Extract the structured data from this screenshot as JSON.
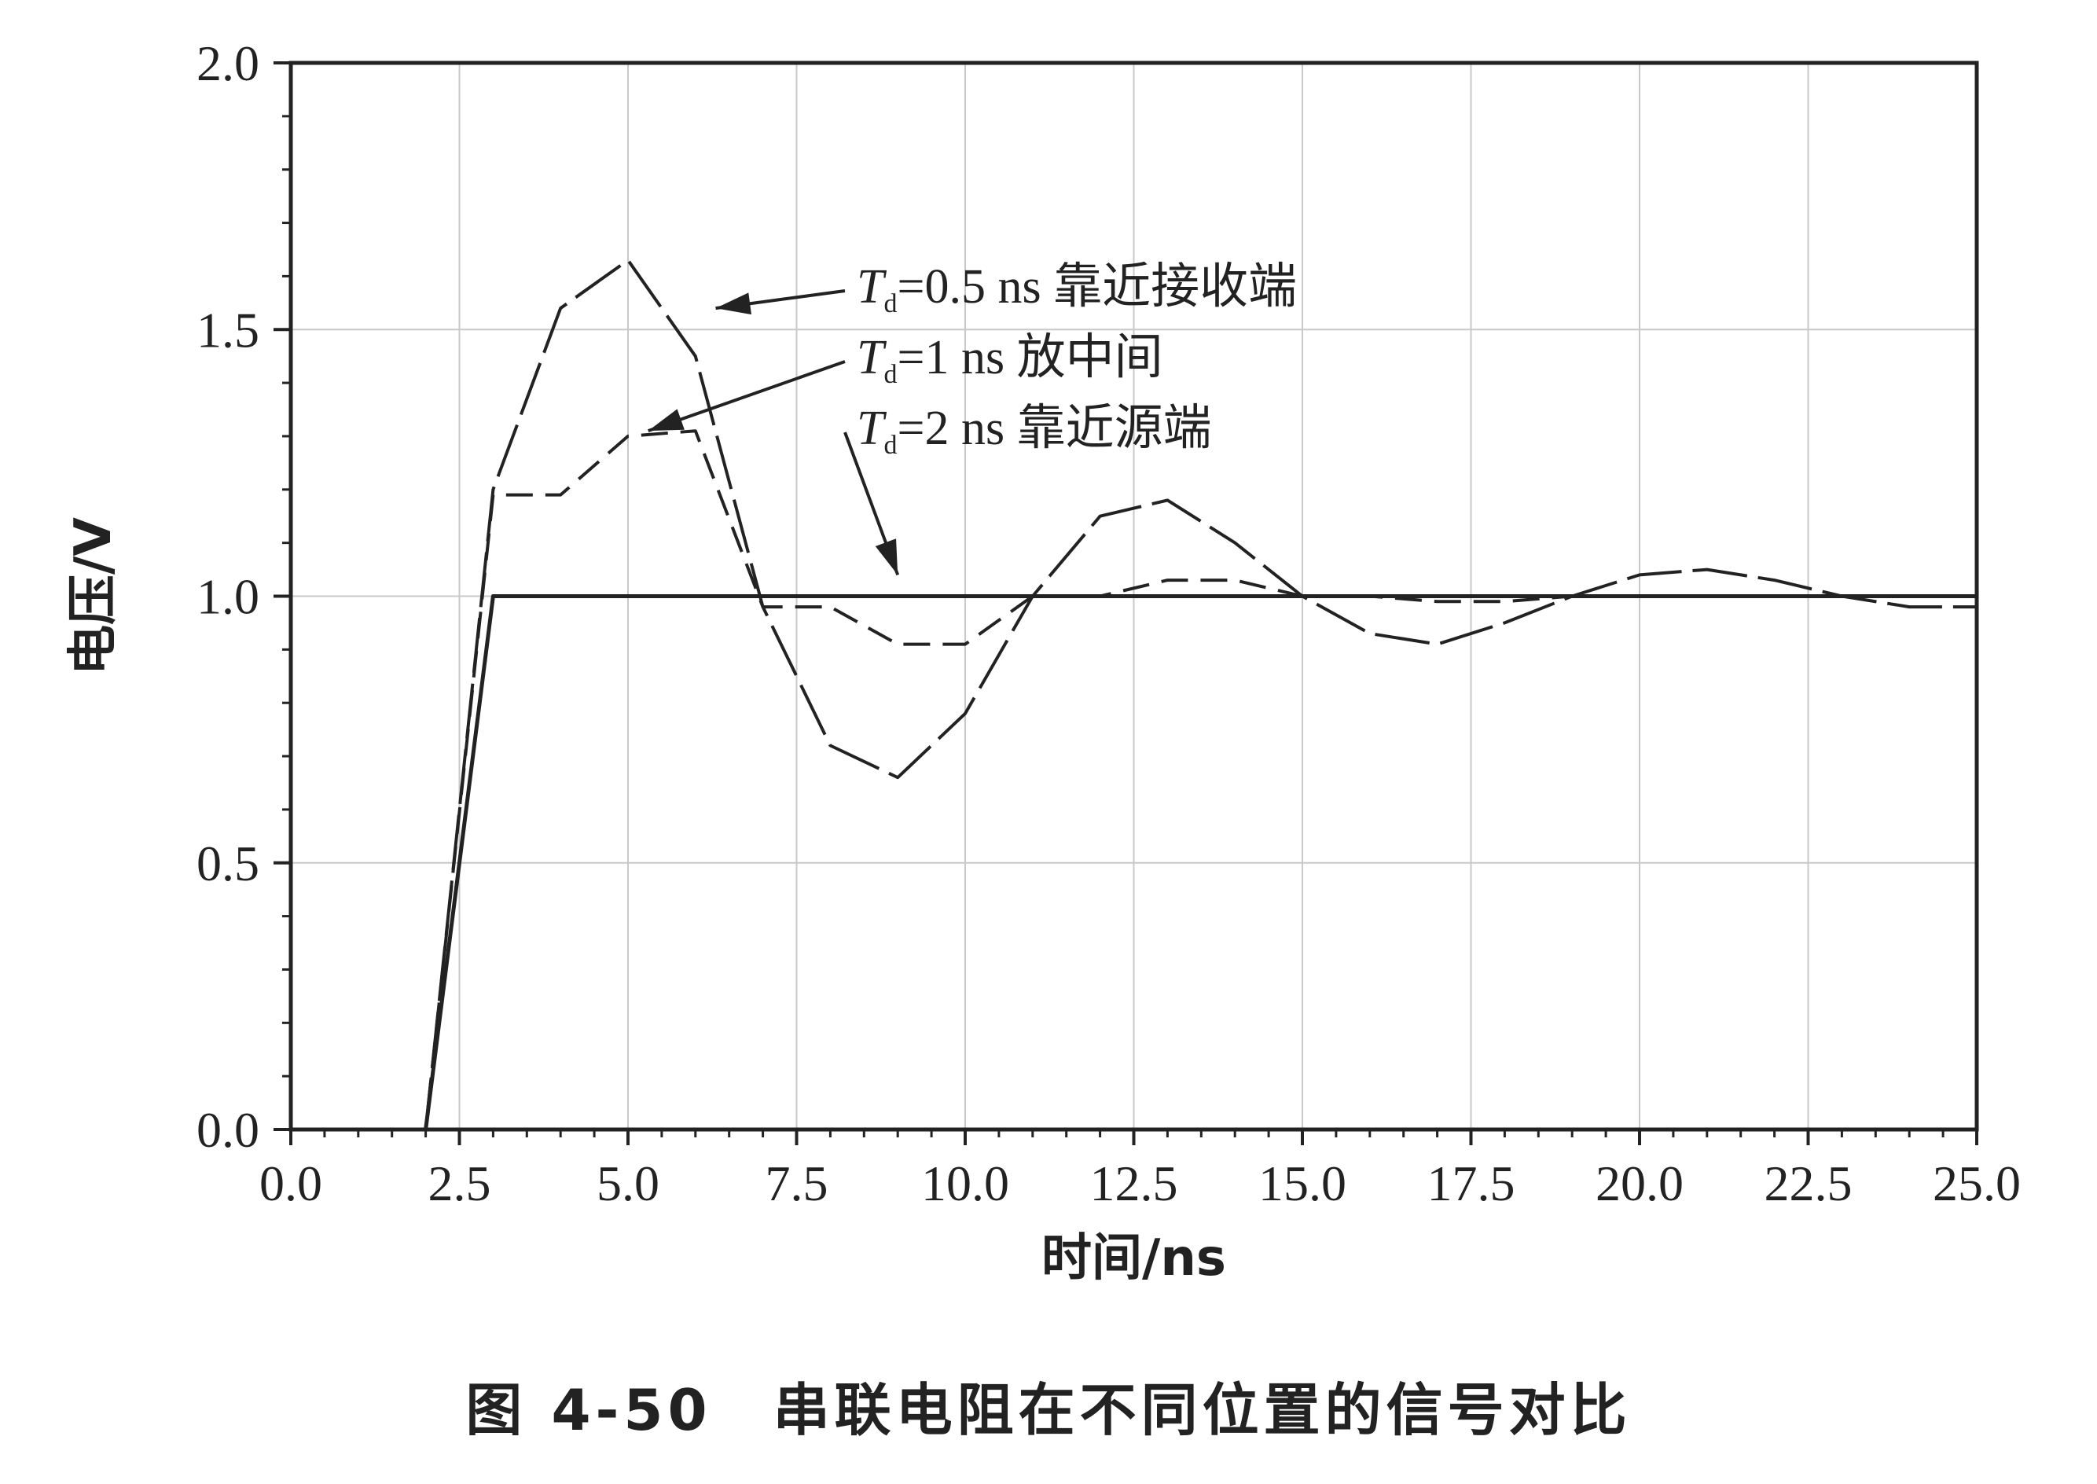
{
  "chart_data": {
    "type": "line",
    "xlabel": "时间/ns",
    "ylabel": "电压/V",
    "xlim": [
      0,
      25
    ],
    "ylim": [
      0,
      2
    ],
    "xticks": [
      "0.0",
      "2.5",
      "5.0",
      "7.5",
      "10.0",
      "12.5",
      "15.0",
      "17.5",
      "20.0",
      "22.5",
      "25.0"
    ],
    "yticks": [
      "0.0",
      "0.5",
      "1.0",
      "1.5",
      "2.0"
    ],
    "grid": true,
    "series": [
      {
        "name": "Td=0.5 ns 靠近接收端",
        "style": "long-dash",
        "x": [
          0,
          2,
          3,
          4,
          5,
          6,
          7,
          8,
          9,
          10,
          11,
          12,
          13,
          14,
          15,
          16,
          17,
          18,
          19,
          20,
          21,
          22,
          23,
          24,
          25
        ],
        "y": [
          0,
          0,
          1.2,
          1.54,
          1.63,
          1.45,
          0.98,
          0.72,
          0.66,
          0.78,
          1.0,
          1.15,
          1.18,
          1.1,
          1.0,
          0.93,
          0.91,
          0.95,
          1.0,
          1.04,
          1.05,
          1.03,
          1.0,
          0.98,
          0.98
        ]
      },
      {
        "name": "Td=1 ns 放中间",
        "style": "dash",
        "x": [
          0,
          2,
          3,
          4,
          5,
          6,
          7,
          8,
          9,
          10,
          11,
          12,
          13,
          14,
          15,
          16,
          17,
          18,
          19,
          20,
          21,
          22,
          23,
          24,
          25
        ],
        "y": [
          0,
          0,
          1.19,
          1.19,
          1.3,
          1.31,
          0.98,
          0.98,
          0.91,
          0.91,
          1.0,
          1.0,
          1.03,
          1.03,
          1.0,
          1.0,
          0.99,
          0.99,
          1.0,
          1.0,
          1.0,
          1.0,
          1.0,
          1.0,
          1.0
        ]
      },
      {
        "name": "Td=2 ns 靠近源端",
        "style": "solid",
        "x": [
          0,
          2,
          3,
          25
        ],
        "y": [
          0,
          0,
          1.0,
          1.0
        ]
      }
    ],
    "annotations": [
      {
        "prefix": "T",
        "sub": "d",
        "text": "=0.5 ns 靠近接收端"
      },
      {
        "prefix": "T",
        "sub": "d",
        "text": "=1 ns 放中间"
      },
      {
        "prefix": "T",
        "sub": "d",
        "text": "=2 ns 靠近源端"
      }
    ]
  },
  "caption": "图 4-50　串联电阻在不同位置的信号对比",
  "colors": {
    "line": "#222222",
    "grid": "#c8c8c8"
  }
}
